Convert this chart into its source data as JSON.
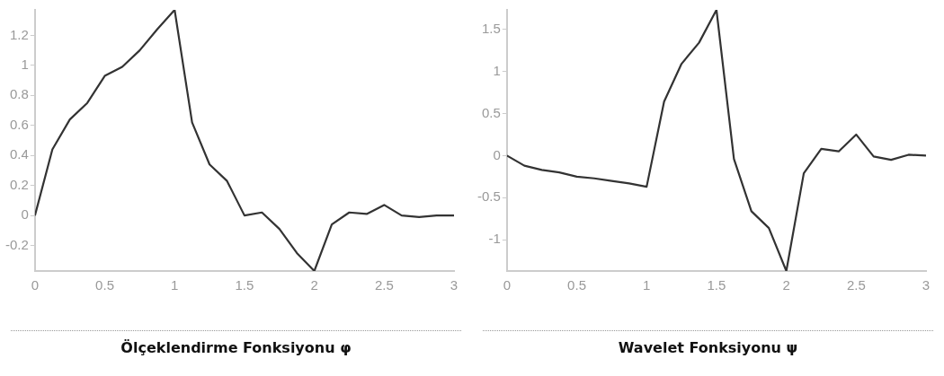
{
  "chart_data": [
    {
      "type": "line",
      "title": "Ölçeklendirme Fonksiyonu φ",
      "x": [
        0,
        0.125,
        0.25,
        0.375,
        0.5,
        0.625,
        0.75,
        0.875,
        1,
        1.125,
        1.25,
        1.375,
        1.5,
        1.625,
        1.75,
        1.875,
        2,
        2.125,
        2.25,
        2.375,
        2.5,
        2.625,
        2.75,
        2.875,
        3
      ],
      "series": [
        {
          "color": "#333333",
          "values": [
            0,
            0.44,
            0.64,
            0.75,
            0.93,
            0.99,
            1.1,
            1.24,
            1.37,
            0.62,
            0.34,
            0.23,
            0,
            0.02,
            -0.09,
            -0.25,
            -0.37,
            -0.06,
            0.02,
            0.01,
            0.07,
            0,
            -0.01,
            0,
            0
          ]
        }
      ],
      "xlim": [
        0,
        3
      ],
      "xticks": [
        0,
        0.5,
        1,
        1.5,
        2,
        2.5,
        3
      ],
      "ylim": [
        -0.37,
        1.37
      ],
      "yticks": [
        -0.2,
        0,
        0.2,
        0.4,
        0.6,
        0.8,
        1,
        1.2
      ],
      "grid": false,
      "legend": false,
      "marker": "none",
      "line_style": "solid"
    },
    {
      "type": "line",
      "title": "Wavelet Fonksiyonu ψ",
      "x": [
        0,
        0.125,
        0.25,
        0.375,
        0.5,
        0.625,
        0.75,
        0.875,
        1,
        1.125,
        1.25,
        1.375,
        1.5,
        1.625,
        1.75,
        1.875,
        2,
        2.125,
        2.25,
        2.375,
        2.5,
        2.625,
        2.75,
        2.875,
        3
      ],
      "series": [
        {
          "color": "#333333",
          "values": [
            0,
            -0.12,
            -0.17,
            -0.2,
            -0.25,
            -0.27,
            -0.3,
            -0.33,
            -0.37,
            0.64,
            1.09,
            1.34,
            1.73,
            -0.04,
            -0.66,
            -0.86,
            -1.37,
            -0.21,
            0.08,
            0.05,
            0.25,
            -0.01,
            -0.05,
            0.01,
            0
          ]
        }
      ],
      "xlim": [
        0,
        3
      ],
      "xticks": [
        0,
        0.5,
        1,
        1.5,
        2,
        2.5,
        3
      ],
      "ylim": [
        -1.37,
        1.73
      ],
      "yticks": [
        -1,
        -0.5,
        0,
        0.5,
        1,
        1.5
      ],
      "grid": false,
      "legend": false,
      "marker": "none",
      "line_style": "solid"
    }
  ]
}
